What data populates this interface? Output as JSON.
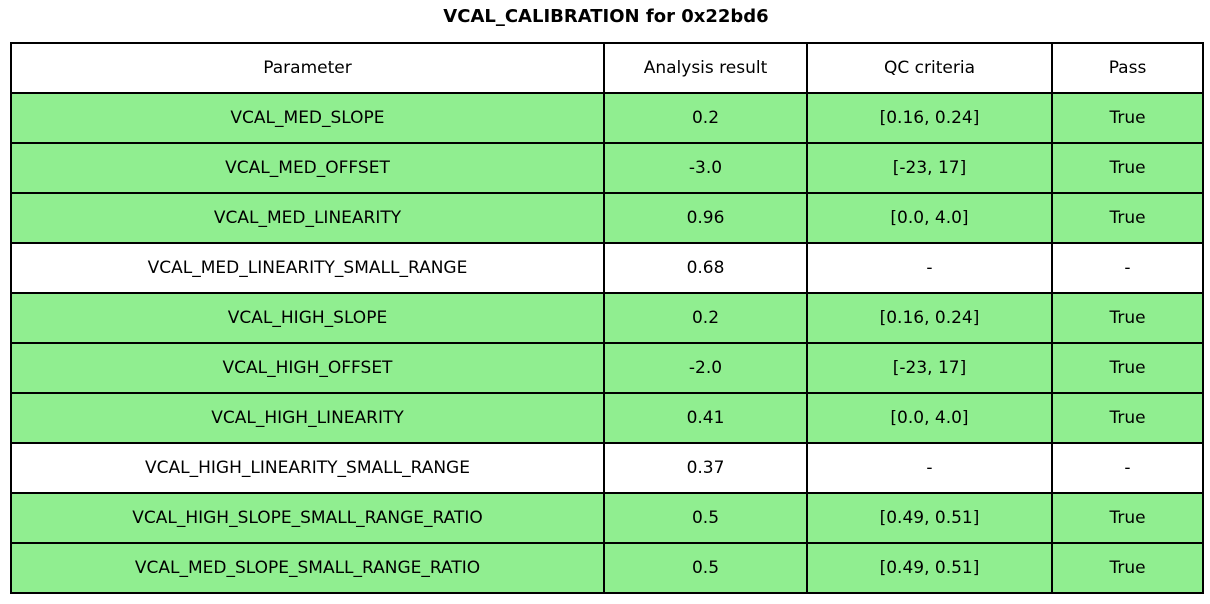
{
  "title": "VCAL_CALIBRATION for 0x22bd6",
  "colors": {
    "pass_row": "#90ee90",
    "neutral_row": "#ffffff",
    "border": "#000000",
    "text": "#000000",
    "background": "#ffffff"
  },
  "chart_data": {
    "type": "table",
    "title": "VCAL_CALIBRATION for 0x22bd6",
    "columns": [
      "Parameter",
      "Analysis result",
      "QC criteria",
      "Pass"
    ],
    "rows": [
      {
        "parameter": "VCAL_MED_SLOPE",
        "analysis_result": "0.2",
        "qc_criteria": "[0.16, 0.24]",
        "pass": "True",
        "highlight": true
      },
      {
        "parameter": "VCAL_MED_OFFSET",
        "analysis_result": "-3.0",
        "qc_criteria": "[-23, 17]",
        "pass": "True",
        "highlight": true
      },
      {
        "parameter": "VCAL_MED_LINEARITY",
        "analysis_result": "0.96",
        "qc_criteria": "[0.0, 4.0]",
        "pass": "True",
        "highlight": true
      },
      {
        "parameter": "VCAL_MED_LINEARITY_SMALL_RANGE",
        "analysis_result": "0.68",
        "qc_criteria": "-",
        "pass": "-",
        "highlight": false
      },
      {
        "parameter": "VCAL_HIGH_SLOPE",
        "analysis_result": "0.2",
        "qc_criteria": "[0.16, 0.24]",
        "pass": "True",
        "highlight": true
      },
      {
        "parameter": "VCAL_HIGH_OFFSET",
        "analysis_result": "-2.0",
        "qc_criteria": "[-23, 17]",
        "pass": "True",
        "highlight": true
      },
      {
        "parameter": "VCAL_HIGH_LINEARITY",
        "analysis_result": "0.41",
        "qc_criteria": "[0.0, 4.0]",
        "pass": "True",
        "highlight": true
      },
      {
        "parameter": "VCAL_HIGH_LINEARITY_SMALL_RANGE",
        "analysis_result": "0.37",
        "qc_criteria": "-",
        "pass": "-",
        "highlight": false
      },
      {
        "parameter": "VCAL_HIGH_SLOPE_SMALL_RANGE_RATIO",
        "analysis_result": "0.5",
        "qc_criteria": "[0.49, 0.51]",
        "pass": "True",
        "highlight": true
      },
      {
        "parameter": "VCAL_MED_SLOPE_SMALL_RANGE_RATIO",
        "analysis_result": "0.5",
        "qc_criteria": "[0.49, 0.51]",
        "pass": "True",
        "highlight": true
      }
    ]
  }
}
